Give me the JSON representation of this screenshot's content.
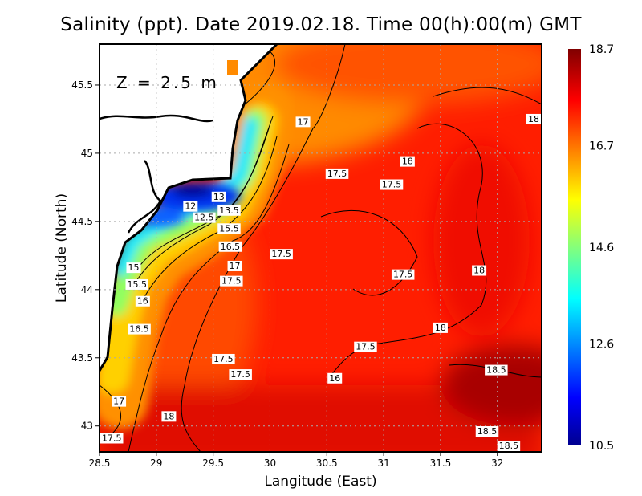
{
  "chart_data": {
    "type": "heatmap",
    "title": "Salinity (ppt). Date 2019.02.18. Time 00(h):00(m) GMT",
    "xlabel": "Langitude (East)",
    "ylabel": "Latitude (North)",
    "annotation": "Z = 2.5 m",
    "xlim": [
      28.5,
      32.39
    ],
    "ylim": [
      42.81,
      45.8
    ],
    "xticks": [
      "28.5",
      "29",
      "29.5",
      "30",
      "30.5",
      "31",
      "31.5",
      "32"
    ],
    "xtick_values": [
      28.5,
      29,
      29.5,
      30,
      30.5,
      31,
      31.5,
      32
    ],
    "yticks": [
      "45.5",
      "45",
      "44.5",
      "44",
      "43.5",
      "43"
    ],
    "ytick_values": [
      45.5,
      45,
      44.5,
      44,
      43.5,
      43
    ],
    "grid": true,
    "colorbar": {
      "range": [
        10.5,
        18.7
      ],
      "tick_labels": [
        "18.7",
        "16.7",
        "14.6",
        "12.6",
        "10.5"
      ],
      "tick_values": [
        18.7,
        16.7,
        14.6,
        12.6,
        10.5
      ],
      "colormap": "jet",
      "placement": "right"
    },
    "contour_labels": [
      {
        "text": "17",
        "lon": 30.29,
        "lat": 45.23
      },
      {
        "text": "18",
        "lon": 31.21,
        "lat": 44.94
      },
      {
        "text": "17.5",
        "lon": 30.59,
        "lat": 44.85
      },
      {
        "text": "17.5",
        "lon": 31.07,
        "lat": 44.77
      },
      {
        "text": "13",
        "lon": 29.55,
        "lat": 44.68
      },
      {
        "text": "12",
        "lon": 29.3,
        "lat": 44.61
      },
      {
        "text": "12.5",
        "lon": 29.42,
        "lat": 44.61
      },
      {
        "text": "13.5",
        "lon": 29.64,
        "lat": 44.58
      },
      {
        "text": "15.5",
        "lon": 29.64,
        "lat": 44.53
      },
      {
        "text": "16.5",
        "lon": 29.65,
        "lat": 44.48
      },
      {
        "text": "17",
        "lon": 29.69,
        "lat": 44.42
      },
      {
        "text": "17.5",
        "lon": 29.66,
        "lat": 44.31
      },
      {
        "text": "17.5",
        "lon": 30.1,
        "lat": 44.26
      },
      {
        "text": "15",
        "lon": 28.8,
        "lat": 44.16
      },
      {
        "text": "15.5",
        "lon": 28.83,
        "lat": 44.12
      },
      {
        "text": "16",
        "lon": 28.88,
        "lat": 44.08
      },
      {
        "text": "17.5",
        "lon": 31.17,
        "lat": 44.11
      },
      {
        "text": "18",
        "lon": 31.84,
        "lat": 44.14
      },
      {
        "text": "16.5",
        "lon": 28.85,
        "lat": 43.71
      },
      {
        "text": "18",
        "lon": 31.5,
        "lat": 43.72
      },
      {
        "text": "17.5",
        "lon": 30.84,
        "lat": 43.58
      },
      {
        "text": "17.5",
        "lon": 29.59,
        "lat": 43.49
      },
      {
        "text": "17.5",
        "lon": 29.74,
        "lat": 43.46
      },
      {
        "text": "16",
        "lon": 30.57,
        "lat": 43.35
      },
      {
        "text": "18.5",
        "lon": 31.99,
        "lat": 43.41
      },
      {
        "text": "17",
        "lon": 28.67,
        "lat": 43.18
      },
      {
        "text": "18",
        "lon": 29.11,
        "lat": 43.07
      },
      {
        "text": "17.5",
        "lon": 28.6,
        "lat": 42.91
      },
      {
        "text": "18.5",
        "lon": 31.91,
        "lat": 42.96
      },
      {
        "text": "18.5",
        "lon": 32.1,
        "lat": 42.91
      },
      {
        "text": "18",
        "lon": 32.36,
        "lat": 45.25
      }
    ]
  }
}
